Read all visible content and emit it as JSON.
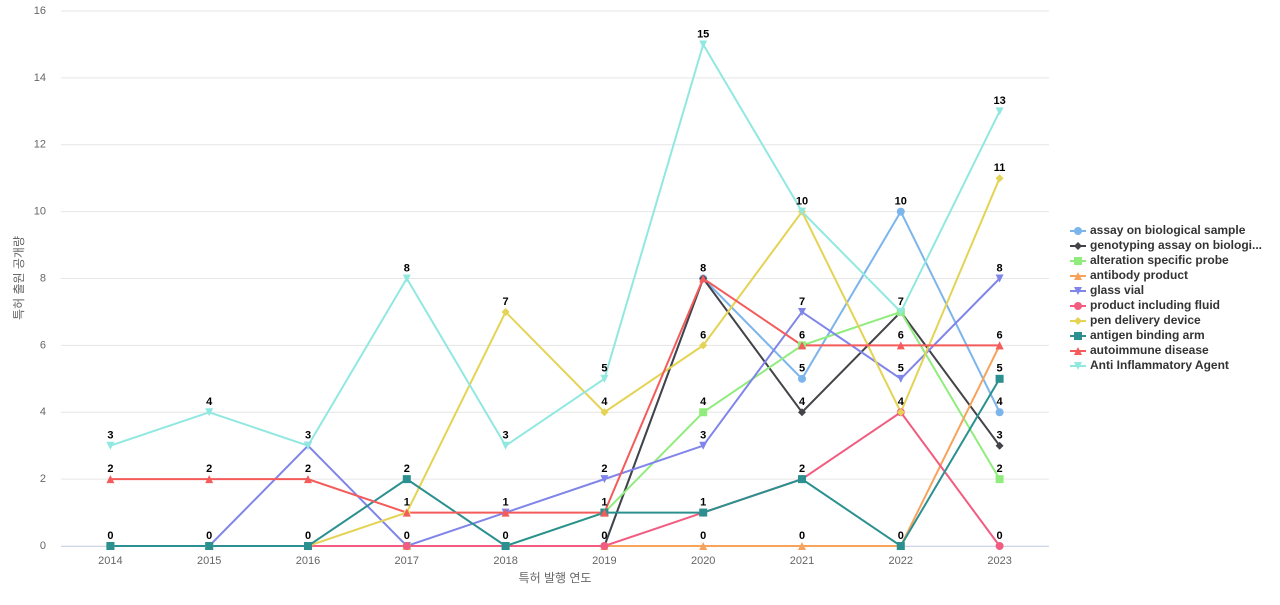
{
  "chart_data": {
    "type": "line",
    "x_label": "특허 발행 연도",
    "y_label": "특허 출원 공개량",
    "categories": [
      "2014",
      "2015",
      "2016",
      "2017",
      "2018",
      "2019",
      "2020",
      "2021",
      "2022",
      "2023"
    ],
    "ylim": [
      0,
      16
    ],
    "yticks": [
      0,
      2,
      4,
      6,
      8,
      10,
      12,
      14,
      16
    ],
    "grid": true,
    "legend": "right",
    "series": [
      {
        "name": "assay on biological sample",
        "color": "#7cb5ec",
        "marker": "circle",
        "values": [
          0,
          0,
          0,
          0,
          0,
          0,
          8,
          5,
          10,
          4
        ]
      },
      {
        "name": "genotyping assay on biologi...",
        "color": "#434348",
        "marker": "diamond",
        "values": [
          0,
          0,
          0,
          0,
          0,
          0,
          8,
          4,
          7,
          3
        ]
      },
      {
        "name": "alteration specific probe",
        "color": "#90ed7d",
        "marker": "square",
        "values": [
          0,
          0,
          0,
          0,
          0,
          1,
          4,
          6,
          7,
          2
        ]
      },
      {
        "name": "antibody product",
        "color": "#f7a35c",
        "marker": "triangle",
        "values": [
          0,
          0,
          0,
          0,
          0,
          0,
          0,
          0,
          0,
          6
        ]
      },
      {
        "name": "glass vial",
        "color": "#8085e9",
        "marker": "triangle-down",
        "values": [
          0,
          0,
          3,
          0,
          1,
          2,
          3,
          7,
          5,
          8
        ]
      },
      {
        "name": "product including fluid",
        "color": "#f15c80",
        "marker": "circle",
        "values": [
          0,
          0,
          0,
          0,
          0,
          0,
          1,
          2,
          4,
          0
        ]
      },
      {
        "name": "pen delivery device",
        "color": "#e4d354",
        "marker": "diamond",
        "values": [
          0,
          0,
          0,
          1,
          7,
          4,
          6,
          10,
          4,
          11
        ]
      },
      {
        "name": "antigen binding arm",
        "color": "#2b908f",
        "marker": "square",
        "values": [
          0,
          0,
          0,
          2,
          0,
          1,
          1,
          2,
          0,
          5
        ]
      },
      {
        "name": "autoimmune disease",
        "color": "#f45b5b",
        "marker": "triangle",
        "values": [
          2,
          2,
          2,
          1,
          1,
          1,
          8,
          6,
          6,
          6
        ]
      },
      {
        "name": "Anti Inflammatory Agent",
        "color": "#91e8e1",
        "marker": "triangle-down",
        "values": [
          3,
          4,
          3,
          8,
          3,
          5,
          15,
          10,
          7,
          13
        ]
      }
    ]
  }
}
